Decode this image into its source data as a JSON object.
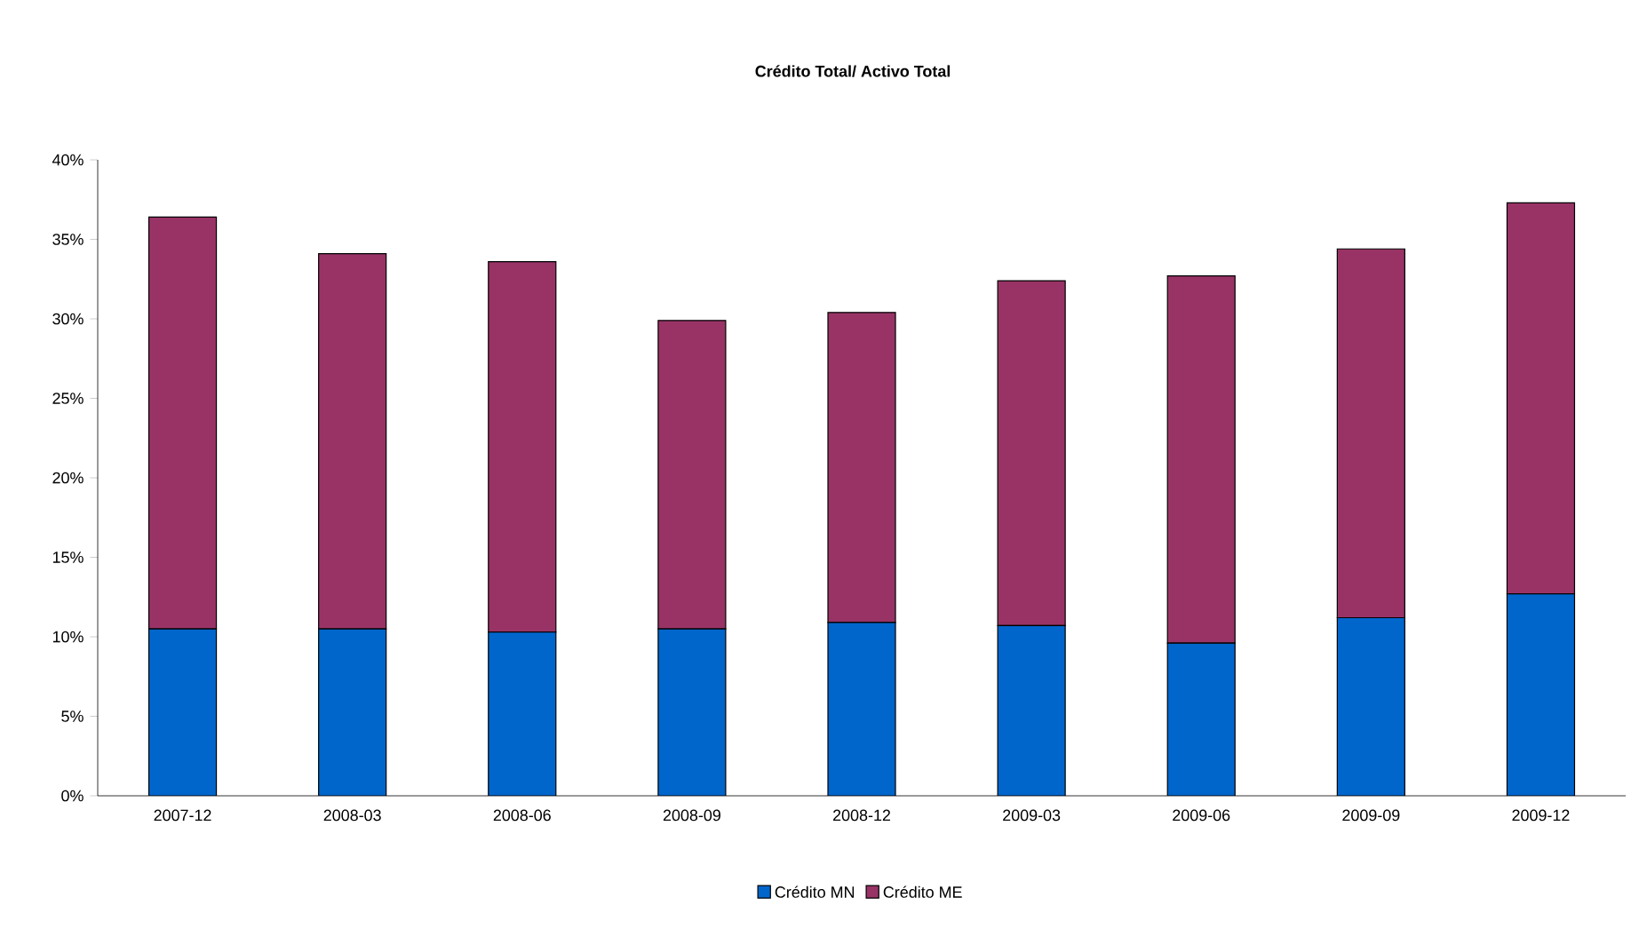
{
  "chart_data": {
    "type": "bar",
    "stacked": true,
    "title": "Crédito Total/ Activo Total",
    "categories": [
      "2007-12",
      "2008-03",
      "2008-06",
      "2008-09",
      "2008-12",
      "2009-03",
      "2009-06",
      "2009-09",
      "2009-12"
    ],
    "series": [
      {
        "name": "Crédito MN",
        "color": "#0066cc",
        "values": [
          10.5,
          10.5,
          10.3,
          10.5,
          10.9,
          10.7,
          9.6,
          11.2,
          12.7
        ]
      },
      {
        "name": "Crédito ME",
        "color": "#993366",
        "values": [
          25.9,
          23.6,
          23.3,
          19.4,
          19.5,
          21.7,
          23.1,
          23.2,
          24.6
        ]
      }
    ],
    "ylim": [
      0,
      40
    ],
    "yticks": [
      {
        "value": 0,
        "label": "0%"
      },
      {
        "value": 5,
        "label": "5%"
      },
      {
        "value": 10,
        "label": "10%"
      },
      {
        "value": 15,
        "label": "15%"
      },
      {
        "value": 20,
        "label": "20%"
      },
      {
        "value": 25,
        "label": "25%"
      },
      {
        "value": 30,
        "label": "30%"
      },
      {
        "value": 35,
        "label": "35%"
      },
      {
        "value": 40,
        "label": "40%"
      }
    ],
    "legend": "bottom"
  }
}
